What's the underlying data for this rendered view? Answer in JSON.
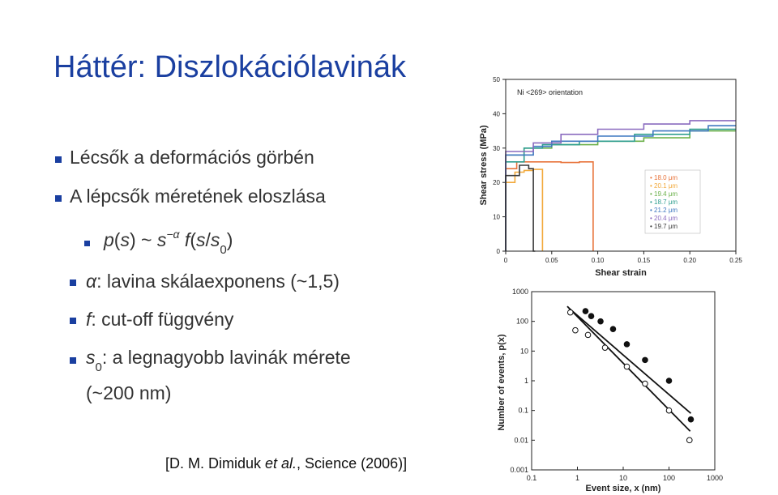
{
  "slide": {
    "title": "Háttér: Diszlokációlavinák",
    "bullets": {
      "b1": "Lécsők a deformációs görbén",
      "b2": "A lépcsők méretének eloszlása",
      "formula": {
        "p": "p",
        "s1": "s",
        "tilde": "~",
        "s2": "s",
        "alpha_exp": "−α",
        "f": "f",
        "s3": "s",
        "slash": "/",
        "s4": "s",
        "sub0": "0"
      },
      "alpha_line": {
        "alpha": "α",
        "text": ": lavina skálaexponens (~1,5)"
      },
      "f_line": {
        "f": "f",
        "text": ": cut-off függvény"
      },
      "s0_line": {
        "s": "s",
        "sub0": "0",
        "text": ": a legnagyobb lavinák mérete",
        "cont": "(~200 nm)"
      }
    },
    "citation": {
      "pre": "[D. M. Dimiduk ",
      "etal": "et al.",
      "post": ", Science (2006)]"
    }
  },
  "chart_data": [
    {
      "type": "line",
      "title": "Ni <269> orientation",
      "xlabel": "Shear strain",
      "ylabel": "Shear stress (MPa)",
      "xlim": [
        0,
        0.25
      ],
      "ylim": [
        0,
        50
      ],
      "xticks": [
        "0",
        "0.05",
        "0.10",
        "0.15",
        "0.20",
        "0.25"
      ],
      "yticks": [
        "0",
        "10",
        "20",
        "30",
        "40",
        "50"
      ],
      "legend_position": "right",
      "series": [
        {
          "name": "18.0 μm",
          "color": "#e8743b",
          "points": [
            [
              0,
              0
            ],
            [
              0.012,
              24
            ],
            [
              0.03,
              26
            ],
            [
              0.06,
              26
            ],
            [
              0.08,
              25.8
            ],
            [
              0.095,
              26
            ],
            [
              0.095,
              0
            ]
          ]
        },
        {
          "name": "20.1 μm",
          "color": "#f2a93b",
          "points": [
            [
              0,
              0
            ],
            [
              0.01,
              20
            ],
            [
              0.02,
              23
            ],
            [
              0.03,
              23.5
            ],
            [
              0.04,
              23.8
            ],
            [
              0.04,
              0
            ]
          ]
        },
        {
          "name": "19.4 μm",
          "color": "#6bb04a",
          "points": [
            [
              0,
              0
            ],
            [
              0.02,
              28
            ],
            [
              0.05,
              30
            ],
            [
              0.1,
              31
            ],
            [
              0.15,
              32
            ],
            [
              0.2,
              33
            ],
            [
              0.25,
              35
            ]
          ]
        },
        {
          "name": "18.7 μm",
          "color": "#2f9e8f",
          "points": [
            [
              0,
              0
            ],
            [
              0.02,
              26
            ],
            [
              0.04,
              30
            ],
            [
              0.08,
              31
            ],
            [
              0.14,
              32
            ],
            [
              0.2,
              34
            ],
            [
              0.25,
              35.5
            ]
          ]
        },
        {
          "name": "21.2 μm",
          "color": "#3f78c0",
          "points": [
            [
              0,
              0
            ],
            [
              0.03,
              28
            ],
            [
              0.05,
              30.5
            ],
            [
              0.1,
              32
            ],
            [
              0.16,
              33.5
            ],
            [
              0.22,
              35
            ],
            [
              0.25,
              36.5
            ]
          ]
        },
        {
          "name": "20.4 μm",
          "color": "#8a6bbf",
          "points": [
            [
              0,
              0
            ],
            [
              0.03,
              29
            ],
            [
              0.06,
              31.5
            ],
            [
              0.1,
              34
            ],
            [
              0.15,
              35.5
            ],
            [
              0.2,
              37
            ],
            [
              0.25,
              38
            ]
          ]
        },
        {
          "name": "19.7 μm",
          "color": "#3a3a3a",
          "points": [
            [
              0,
              0
            ],
            [
              0.015,
              22
            ],
            [
              0.025,
              25
            ],
            [
              0.03,
              24
            ],
            [
              0.032,
              0
            ]
          ]
        }
      ]
    },
    {
      "type": "scatter",
      "xlabel": "Event size, x (nm)",
      "ylabel": "Number of events, p(x)",
      "xscale": "log",
      "yscale": "log",
      "xlim": [
        0.1,
        1000
      ],
      "ylim": [
        0.001,
        1000
      ],
      "xticks": [
        "0.1",
        "1",
        "10",
        "100",
        "1000"
      ],
      "yticks": [
        "0.001",
        "0.01",
        "0.1",
        "1",
        "10",
        "100",
        "1000"
      ],
      "series": [
        {
          "name": "filled",
          "marker": "filled",
          "points": [
            [
              1.5,
              220
            ],
            [
              2.0,
              150
            ],
            [
              3.2,
              100
            ],
            [
              6.0,
              55
            ],
            [
              12,
              17
            ],
            [
              30,
              5
            ],
            [
              100,
              1
            ],
            [
              300,
              0.05
            ]
          ]
        },
        {
          "name": "open",
          "marker": "open",
          "points": [
            [
              0.7,
              200
            ],
            [
              0.9,
              50
            ],
            [
              1.7,
              35
            ],
            [
              4.0,
              13
            ],
            [
              12,
              3
            ],
            [
              30,
              0.8
            ],
            [
              100,
              0.1
            ],
            [
              280,
              0.01
            ]
          ]
        }
      ],
      "fit_lines": [
        {
          "from": [
            0.65,
            280
          ],
          "to": [
            300,
            0.08
          ]
        },
        {
          "from": [
            0.6,
            320
          ],
          "to": [
            290,
            0.02
          ]
        }
      ]
    }
  ]
}
